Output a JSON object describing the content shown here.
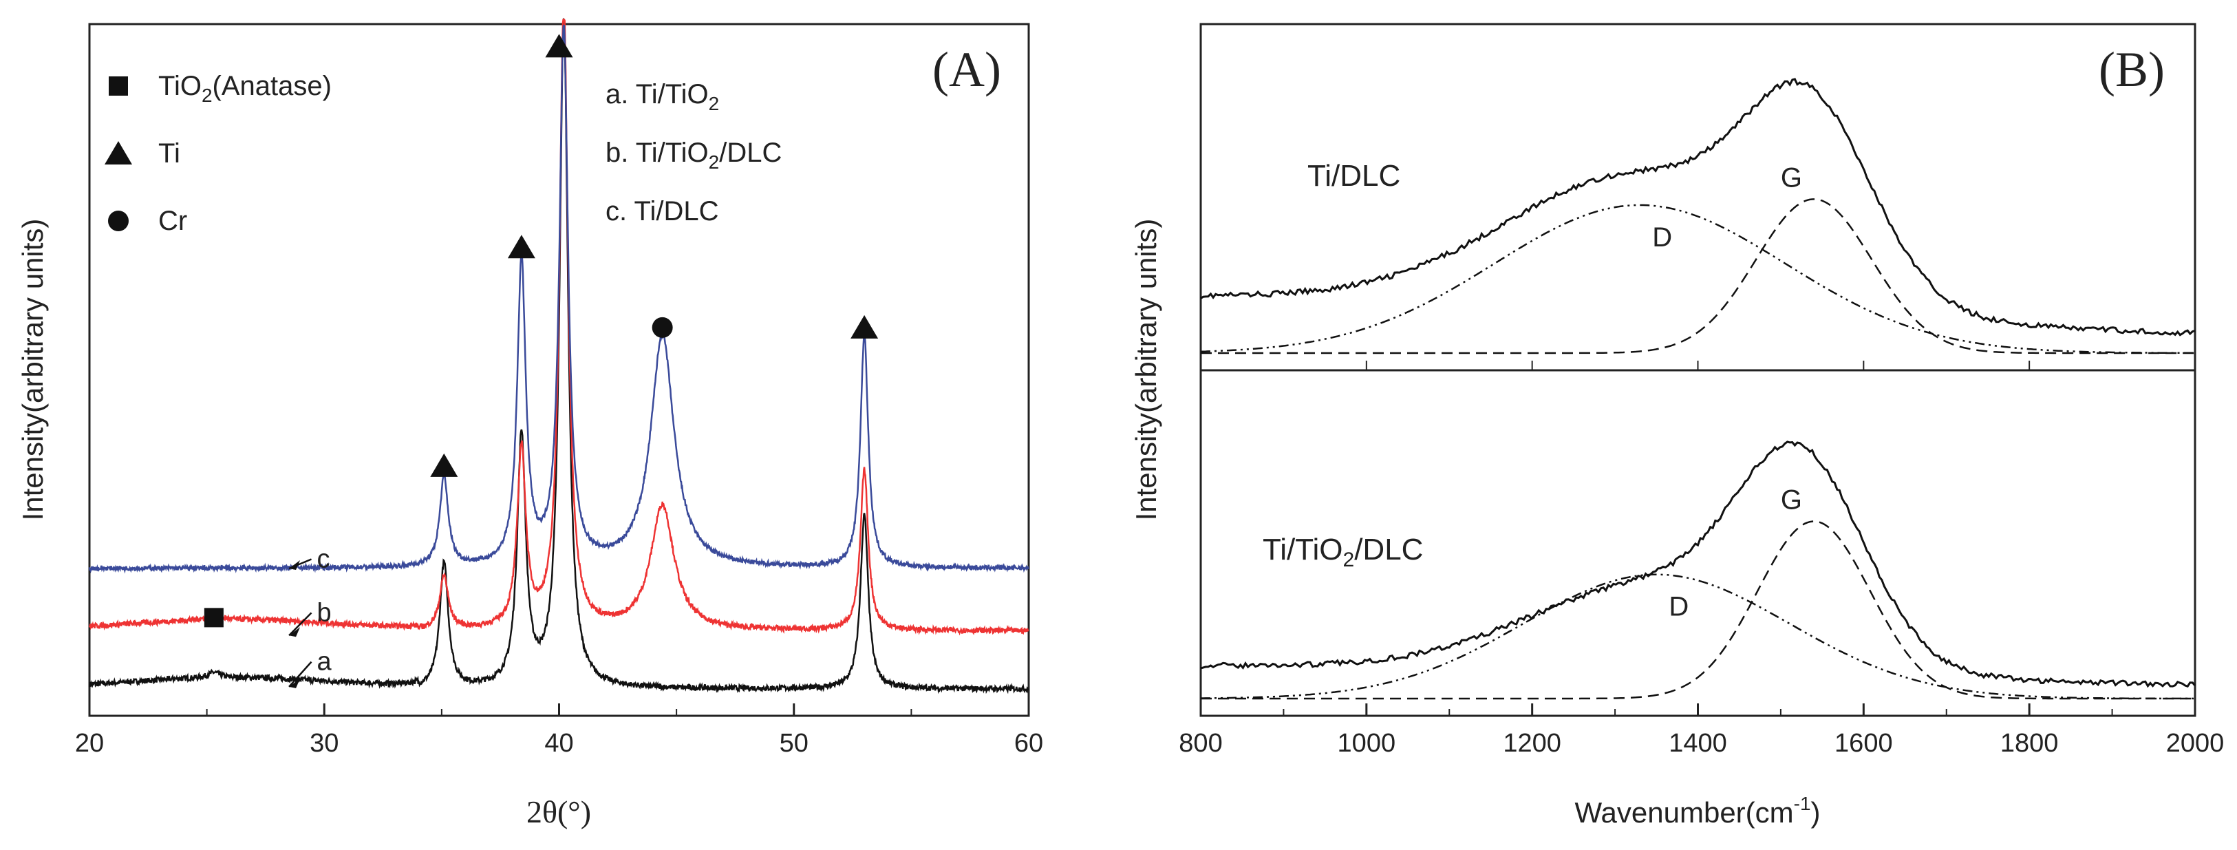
{
  "chart_data": [
    {
      "panel_label": "(A)",
      "type": "line",
      "title": "",
      "xlabel": "2θ(°)",
      "ylabel": "Intensity(arbitrary units)",
      "xlim": [
        20,
        60
      ],
      "xticks": [
        "20",
        "30",
        "40",
        "50",
        "60"
      ],
      "peaks_deg": [
        25.3,
        35.1,
        38.4,
        40.2,
        44.4,
        53.0
      ],
      "series": [
        {
          "id": "a",
          "name": "Ti/TiO2",
          "color": "#111111",
          "baseline": 0.06,
          "noise": 0.006,
          "peaks": [
            [
              25.3,
              0.012,
              0.3
            ],
            [
              35.1,
              0.28,
              0.22
            ],
            [
              38.4,
              0.56,
              0.22
            ],
            [
              40.2,
              1.5,
              0.22
            ],
            [
              53.0,
              0.39,
              0.2
            ]
          ]
        },
        {
          "id": "b",
          "name": "Ti/TiO2/DLC",
          "color": "#ee3333",
          "baseline": 0.19,
          "noise": 0.006,
          "peaks": [
            [
              25.3,
              0.012,
              0.3
            ],
            [
              35.1,
              0.12,
              0.22
            ],
            [
              38.4,
              0.4,
              0.22
            ],
            [
              40.2,
              1.4,
              0.22
            ],
            [
              44.4,
              0.28,
              0.6
            ],
            [
              53.0,
              0.36,
              0.2
            ]
          ]
        },
        {
          "id": "c",
          "name": "Ti/DLC",
          "color": "#3a4a9a",
          "baseline": 0.33,
          "noise": 0.005,
          "peaks": [
            [
              35.1,
              0.2,
              0.22
            ],
            [
              38.4,
              0.68,
              0.22
            ],
            [
              40.2,
              1.2,
              0.22
            ],
            [
              44.4,
              0.52,
              0.6
            ],
            [
              53.0,
              0.52,
              0.2
            ]
          ]
        }
      ],
      "curve_labels": [
        "a",
        "b",
        "c"
      ],
      "symbol_legend": [
        {
          "symbol": "square",
          "label_main": "TiO",
          "label_sub": "2",
          "label_tail": "(Anatase)"
        },
        {
          "symbol": "triangle",
          "label_main": "Ti",
          "label_sub": "",
          "label_tail": ""
        },
        {
          "symbol": "circle",
          "label_main": "Cr",
          "label_sub": "",
          "label_tail": ""
        }
      ],
      "series_legend": [
        {
          "parts": [
            "a. Ti/TiO",
            "2",
            ""
          ]
        },
        {
          "parts": [
            "b. Ti/TiO",
            "2",
            "/DLC"
          ]
        },
        {
          "parts": [
            "c. Ti/DLC",
            "",
            ""
          ]
        }
      ]
    },
    {
      "panel_label": "(B)",
      "type": "line",
      "title": "",
      "xlabel": "Wavenumber(cm",
      "xlabel_sup": "-1",
      "xlabel_tail": ")",
      "ylabel": "Intensity(arbitrary units)",
      "xlim": [
        800,
        2000
      ],
      "xticks": [
        "800",
        "1000",
        "1200",
        "1400",
        "1600",
        "1800",
        "2000"
      ],
      "subplots": [
        {
          "label_parts": [
            "Ti/DLC",
            "",
            ""
          ],
          "measured": {
            "base": 0.18,
            "D": {
              "center": 1330,
              "height": 0.45,
              "sigma": 160
            },
            "G": {
              "center": 1535,
              "height": 0.58,
              "sigma": 75
            }
          },
          "fit_D": {
            "center": 1330,
            "height": 0.5,
            "sigma": 175
          },
          "fit_G": {
            "center": 1540,
            "height": 0.52,
            "sigma": 70
          },
          "d_label": "D",
          "g_label": "G"
        },
        {
          "label_parts": [
            "Ti/TiO",
            "2",
            "/DLC"
          ],
          "measured": {
            "base": 0.09,
            "D": {
              "center": 1350,
              "height": 0.3,
              "sigma": 150
            },
            "G": {
              "center": 1525,
              "height": 0.63,
              "sigma": 75
            }
          },
          "fit_D": {
            "center": 1350,
            "height": 0.42,
            "sigma": 160
          },
          "fit_G": {
            "center": 1540,
            "height": 0.6,
            "sigma": 68
          },
          "d_label": "D",
          "g_label": "G"
        }
      ]
    }
  ]
}
